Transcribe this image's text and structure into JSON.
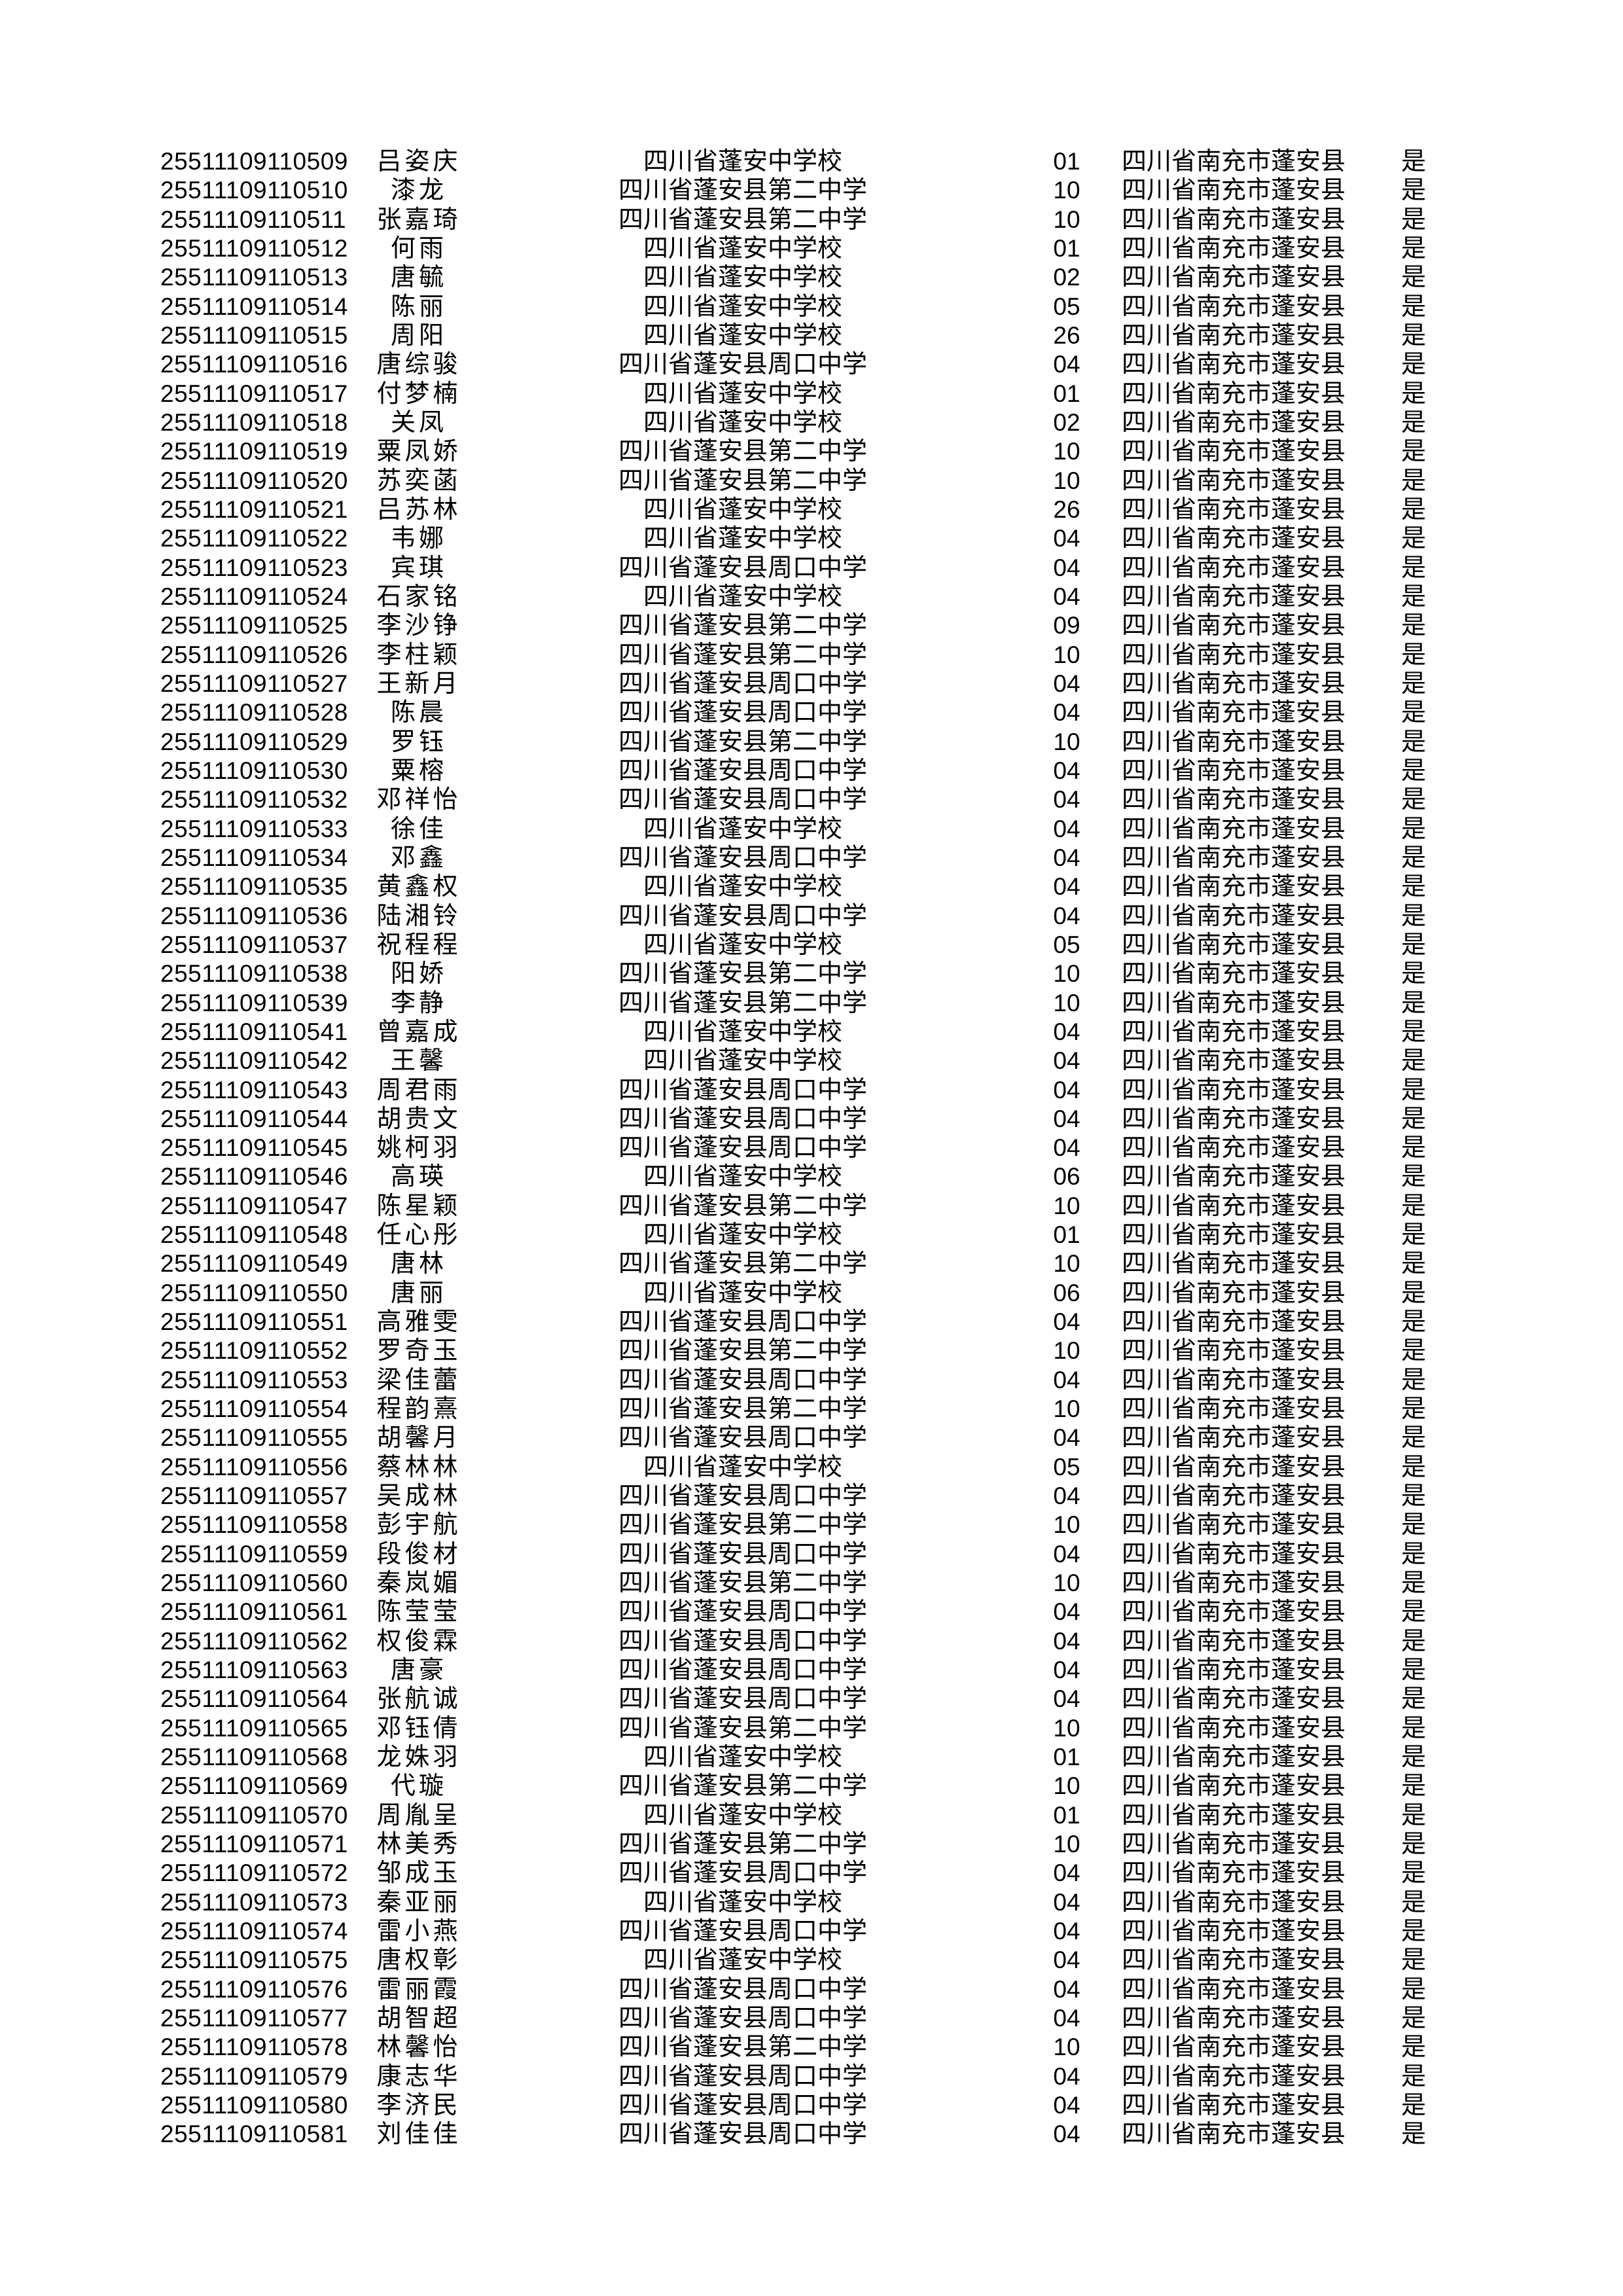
{
  "page": {
    "background_color": "#ffffff",
    "text_color": "#000000"
  },
  "table": {
    "field_keys": [
      "exam_id",
      "student_name",
      "school",
      "code",
      "district",
      "confirmed"
    ],
    "rows": [
      [
        "25511109110509",
        "吕姿庆",
        "四川省蓬安中学校",
        "01",
        "四川省南充市蓬安县",
        "是"
      ],
      [
        "25511109110510",
        "漆龙",
        "四川省蓬安县第二中学",
        "10",
        "四川省南充市蓬安县",
        "是"
      ],
      [
        "25511109110511",
        "张嘉琦",
        "四川省蓬安县第二中学",
        "10",
        "四川省南充市蓬安县",
        "是"
      ],
      [
        "25511109110512",
        "何雨",
        "四川省蓬安中学校",
        "01",
        "四川省南充市蓬安县",
        "是"
      ],
      [
        "25511109110513",
        "唐毓",
        "四川省蓬安中学校",
        "02",
        "四川省南充市蓬安县",
        "是"
      ],
      [
        "25511109110514",
        "陈丽",
        "四川省蓬安中学校",
        "05",
        "四川省南充市蓬安县",
        "是"
      ],
      [
        "25511109110515",
        "周阳",
        "四川省蓬安中学校",
        "26",
        "四川省南充市蓬安县",
        "是"
      ],
      [
        "25511109110516",
        "唐综骏",
        "四川省蓬安县周口中学",
        "04",
        "四川省南充市蓬安县",
        "是"
      ],
      [
        "25511109110517",
        "付梦楠",
        "四川省蓬安中学校",
        "01",
        "四川省南充市蓬安县",
        "是"
      ],
      [
        "25511109110518",
        "关凤",
        "四川省蓬安中学校",
        "02",
        "四川省南充市蓬安县",
        "是"
      ],
      [
        "25511109110519",
        "粟凤娇",
        "四川省蓬安县第二中学",
        "10",
        "四川省南充市蓬安县",
        "是"
      ],
      [
        "25511109110520",
        "苏奕菡",
        "四川省蓬安县第二中学",
        "10",
        "四川省南充市蓬安县",
        "是"
      ],
      [
        "25511109110521",
        "吕苏林",
        "四川省蓬安中学校",
        "26",
        "四川省南充市蓬安县",
        "是"
      ],
      [
        "25511109110522",
        "韦娜",
        "四川省蓬安中学校",
        "04",
        "四川省南充市蓬安县",
        "是"
      ],
      [
        "25511109110523",
        "宾琪",
        "四川省蓬安县周口中学",
        "04",
        "四川省南充市蓬安县",
        "是"
      ],
      [
        "25511109110524",
        "石家铭",
        "四川省蓬安中学校",
        "04",
        "四川省南充市蓬安县",
        "是"
      ],
      [
        "25511109110525",
        "李沙铮",
        "四川省蓬安县第二中学",
        "09",
        "四川省南充市蓬安县",
        "是"
      ],
      [
        "25511109110526",
        "李柱颖",
        "四川省蓬安县第二中学",
        "10",
        "四川省南充市蓬安县",
        "是"
      ],
      [
        "25511109110527",
        "王新月",
        "四川省蓬安县周口中学",
        "04",
        "四川省南充市蓬安县",
        "是"
      ],
      [
        "25511109110528",
        "陈晨",
        "四川省蓬安县周口中学",
        "04",
        "四川省南充市蓬安县",
        "是"
      ],
      [
        "25511109110529",
        "罗钰",
        "四川省蓬安县第二中学",
        "10",
        "四川省南充市蓬安县",
        "是"
      ],
      [
        "25511109110530",
        "粟榕",
        "四川省蓬安县周口中学",
        "04",
        "四川省南充市蓬安县",
        "是"
      ],
      [
        "25511109110532",
        "邓祥怡",
        "四川省蓬安县周口中学",
        "04",
        "四川省南充市蓬安县",
        "是"
      ],
      [
        "25511109110533",
        "徐佳",
        "四川省蓬安中学校",
        "04",
        "四川省南充市蓬安县",
        "是"
      ],
      [
        "25511109110534",
        "邓鑫",
        "四川省蓬安县周口中学",
        "04",
        "四川省南充市蓬安县",
        "是"
      ],
      [
        "25511109110535",
        "黄鑫权",
        "四川省蓬安中学校",
        "04",
        "四川省南充市蓬安县",
        "是"
      ],
      [
        "25511109110536",
        "陆湘铃",
        "四川省蓬安县周口中学",
        "04",
        "四川省南充市蓬安县",
        "是"
      ],
      [
        "25511109110537",
        "祝程程",
        "四川省蓬安中学校",
        "05",
        "四川省南充市蓬安县",
        "是"
      ],
      [
        "25511109110538",
        "阳娇",
        "四川省蓬安县第二中学",
        "10",
        "四川省南充市蓬安县",
        "是"
      ],
      [
        "25511109110539",
        "李静",
        "四川省蓬安县第二中学",
        "10",
        "四川省南充市蓬安县",
        "是"
      ],
      [
        "25511109110541",
        "曾嘉成",
        "四川省蓬安中学校",
        "04",
        "四川省南充市蓬安县",
        "是"
      ],
      [
        "25511109110542",
        "王馨",
        "四川省蓬安中学校",
        "04",
        "四川省南充市蓬安县",
        "是"
      ],
      [
        "25511109110543",
        "周君雨",
        "四川省蓬安县周口中学",
        "04",
        "四川省南充市蓬安县",
        "是"
      ],
      [
        "25511109110544",
        "胡贵文",
        "四川省蓬安县周口中学",
        "04",
        "四川省南充市蓬安县",
        "是"
      ],
      [
        "25511109110545",
        "姚柯羽",
        "四川省蓬安县周口中学",
        "04",
        "四川省南充市蓬安县",
        "是"
      ],
      [
        "25511109110546",
        "高瑛",
        "四川省蓬安中学校",
        "06",
        "四川省南充市蓬安县",
        "是"
      ],
      [
        "25511109110547",
        "陈星颖",
        "四川省蓬安县第二中学",
        "10",
        "四川省南充市蓬安县",
        "是"
      ],
      [
        "25511109110548",
        "任心彤",
        "四川省蓬安中学校",
        "01",
        "四川省南充市蓬安县",
        "是"
      ],
      [
        "25511109110549",
        "唐林",
        "四川省蓬安县第二中学",
        "10",
        "四川省南充市蓬安县",
        "是"
      ],
      [
        "25511109110550",
        "唐丽",
        "四川省蓬安中学校",
        "06",
        "四川省南充市蓬安县",
        "是"
      ],
      [
        "25511109110551",
        "高雅雯",
        "四川省蓬安县周口中学",
        "04",
        "四川省南充市蓬安县",
        "是"
      ],
      [
        "25511109110552",
        "罗奇玉",
        "四川省蓬安县第二中学",
        "10",
        "四川省南充市蓬安县",
        "是"
      ],
      [
        "25511109110553",
        "梁佳蕾",
        "四川省蓬安县周口中学",
        "04",
        "四川省南充市蓬安县",
        "是"
      ],
      [
        "25511109110554",
        "程韵熹",
        "四川省蓬安县第二中学",
        "10",
        "四川省南充市蓬安县",
        "是"
      ],
      [
        "25511109110555",
        "胡馨月",
        "四川省蓬安县周口中学",
        "04",
        "四川省南充市蓬安县",
        "是"
      ],
      [
        "25511109110556",
        "蔡林林",
        "四川省蓬安中学校",
        "05",
        "四川省南充市蓬安县",
        "是"
      ],
      [
        "25511109110557",
        "吴成林",
        "四川省蓬安县周口中学",
        "04",
        "四川省南充市蓬安县",
        "是"
      ],
      [
        "25511109110558",
        "彭宇航",
        "四川省蓬安县第二中学",
        "10",
        "四川省南充市蓬安县",
        "是"
      ],
      [
        "25511109110559",
        "段俊材",
        "四川省蓬安县周口中学",
        "04",
        "四川省南充市蓬安县",
        "是"
      ],
      [
        "25511109110560",
        "秦岚媚",
        "四川省蓬安县第二中学",
        "10",
        "四川省南充市蓬安县",
        "是"
      ],
      [
        "25511109110561",
        "陈莹莹",
        "四川省蓬安县周口中学",
        "04",
        "四川省南充市蓬安县",
        "是"
      ],
      [
        "25511109110562",
        "权俊霖",
        "四川省蓬安县周口中学",
        "04",
        "四川省南充市蓬安县",
        "是"
      ],
      [
        "25511109110563",
        "唐豪",
        "四川省蓬安县周口中学",
        "04",
        "四川省南充市蓬安县",
        "是"
      ],
      [
        "25511109110564",
        "张航诚",
        "四川省蓬安县周口中学",
        "04",
        "四川省南充市蓬安县",
        "是"
      ],
      [
        "25511109110565",
        "邓钰倩",
        "四川省蓬安县第二中学",
        "10",
        "四川省南充市蓬安县",
        "是"
      ],
      [
        "25511109110568",
        "龙姝羽",
        "四川省蓬安中学校",
        "01",
        "四川省南充市蓬安县",
        "是"
      ],
      [
        "25511109110569",
        "代璇",
        "四川省蓬安县第二中学",
        "10",
        "四川省南充市蓬安县",
        "是"
      ],
      [
        "25511109110570",
        "周胤呈",
        "四川省蓬安中学校",
        "01",
        "四川省南充市蓬安县",
        "是"
      ],
      [
        "25511109110571",
        "林美秀",
        "四川省蓬安县第二中学",
        "10",
        "四川省南充市蓬安县",
        "是"
      ],
      [
        "25511109110572",
        "邹成玉",
        "四川省蓬安县周口中学",
        "04",
        "四川省南充市蓬安县",
        "是"
      ],
      [
        "25511109110573",
        "秦亚丽",
        "四川省蓬安中学校",
        "04",
        "四川省南充市蓬安县",
        "是"
      ],
      [
        "25511109110574",
        "雷小燕",
        "四川省蓬安县周口中学",
        "04",
        "四川省南充市蓬安县",
        "是"
      ],
      [
        "25511109110575",
        "唐权彰",
        "四川省蓬安中学校",
        "04",
        "四川省南充市蓬安县",
        "是"
      ],
      [
        "25511109110576",
        "雷丽霞",
        "四川省蓬安县周口中学",
        "04",
        "四川省南充市蓬安县",
        "是"
      ],
      [
        "25511109110577",
        "胡智超",
        "四川省蓬安县周口中学",
        "04",
        "四川省南充市蓬安县",
        "是"
      ],
      [
        "25511109110578",
        "林馨怡",
        "四川省蓬安县第二中学",
        "10",
        "四川省南充市蓬安县",
        "是"
      ],
      [
        "25511109110579",
        "康志华",
        "四川省蓬安县周口中学",
        "04",
        "四川省南充市蓬安县",
        "是"
      ],
      [
        "25511109110580",
        "李济民",
        "四川省蓬安县周口中学",
        "04",
        "四川省南充市蓬安县",
        "是"
      ],
      [
        "25511109110581",
        "刘佳佳",
        "四川省蓬安县周口中学",
        "04",
        "四川省南充市蓬安县",
        "是"
      ]
    ]
  }
}
